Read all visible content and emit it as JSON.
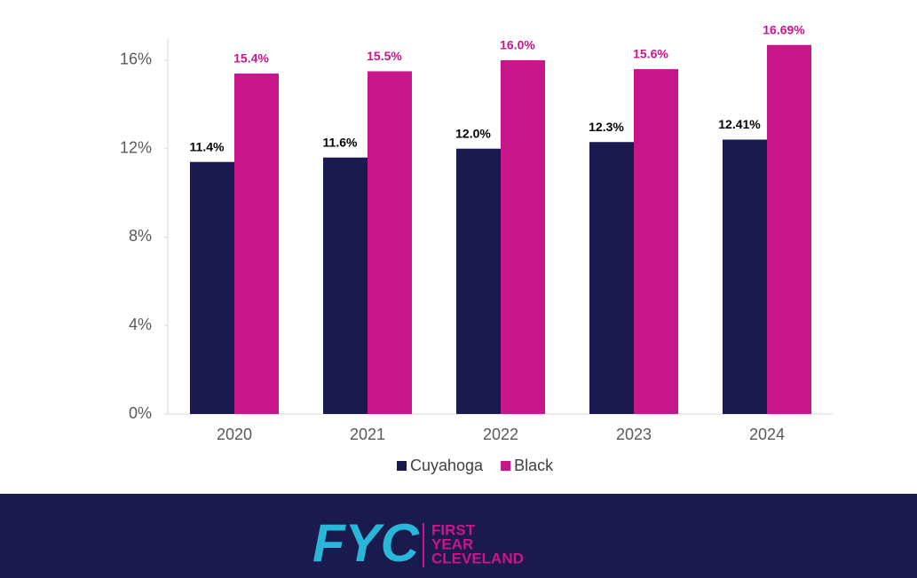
{
  "chart_data": {
    "type": "bar",
    "categories": [
      "2020",
      "2021",
      "2022",
      "2023",
      "2024"
    ],
    "series": [
      {
        "name": "Cuyahoga",
        "color": "#1b1a4e",
        "values": [
          11.4,
          11.6,
          12.0,
          12.3,
          12.41
        ],
        "value_labels": [
          "11.4%",
          "11.6%",
          "12.0%",
          "12.3%",
          "12.41%"
        ],
        "label_color": "#000000"
      },
      {
        "name": "Black",
        "color": "#c7178b",
        "values": [
          15.4,
          15.5,
          16.0,
          15.6,
          16.69
        ],
        "value_labels": [
          "15.4%",
          "15.5%",
          "16.0%",
          "15.6%",
          "16.69%"
        ],
        "label_color": "#c7178b"
      }
    ],
    "ylim": [
      0,
      17
    ],
    "yticks": [
      {
        "value": 0,
        "label": "0%"
      },
      {
        "value": 4,
        "label": "4%"
      },
      {
        "value": 8,
        "label": "8%"
      },
      {
        "value": 12,
        "label": "12%"
      },
      {
        "value": 16,
        "label": "16%"
      }
    ],
    "grid": false,
    "legend": "bottom"
  },
  "footer": {
    "logo": "FYC",
    "lines": [
      "FIRST",
      "YEAR",
      "CLEVELAND"
    ]
  }
}
